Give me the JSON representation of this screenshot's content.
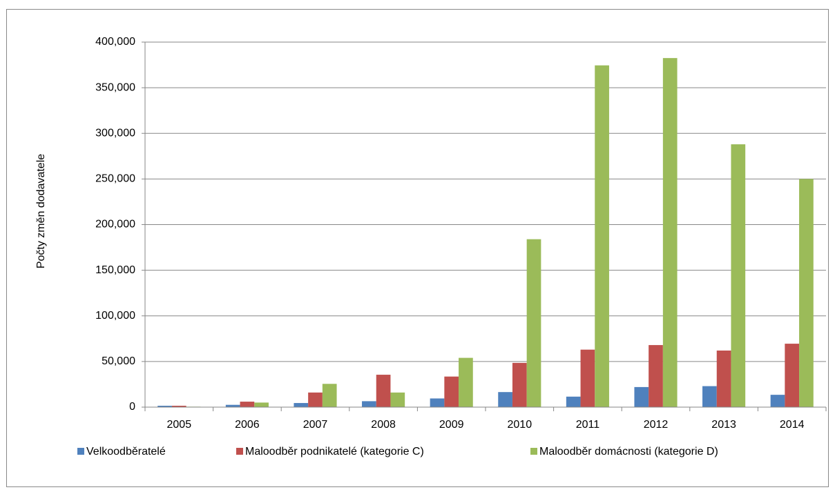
{
  "chart_data": {
    "type": "bar",
    "y_label": "Počty změn dodavatele",
    "categories": [
      "2005",
      "2006",
      "2007",
      "2008",
      "2009",
      "2010",
      "2011",
      "2012",
      "2013",
      "2014"
    ],
    "series": [
      {
        "name": "Velkoodběratelé",
        "color": "#4f81bd",
        "values": [
          1500,
          2500,
          4500,
          6500,
          9500,
          16500,
          11500,
          22000,
          23000,
          13500
        ]
      },
      {
        "name": "Maloodběr podnikatelé (kategorie C)",
        "color": "#c0504d",
        "values": [
          1500,
          6000,
          16000,
          35500,
          33500,
          48500,
          63000,
          68000,
          62000,
          69500
        ]
      },
      {
        "name": "Maloodběr domácnosti (kategorie D)",
        "color": "#9bbb59",
        "values": [
          500,
          5000,
          25500,
          16000,
          54000,
          184000,
          374500,
          382500,
          288000,
          250000
        ]
      }
    ],
    "ylim": [
      0,
      400000
    ],
    "yticks": [
      0,
      {
        "value": 50000,
        "label": "50,000"
      },
      {
        "value": 100000,
        "label": "100,000"
      },
      {
        "value": 150000,
        "label": "150,000"
      },
      {
        "value": 200000,
        "label": "200,000"
      },
      {
        "value": 250000,
        "label": "250,000"
      },
      {
        "value": 300000,
        "label": "300,000"
      },
      {
        "value": 350000,
        "label": "350,000"
      },
      {
        "value": 400000,
        "label": "400,000"
      }
    ],
    "grid": true,
    "legend": "bottom"
  }
}
